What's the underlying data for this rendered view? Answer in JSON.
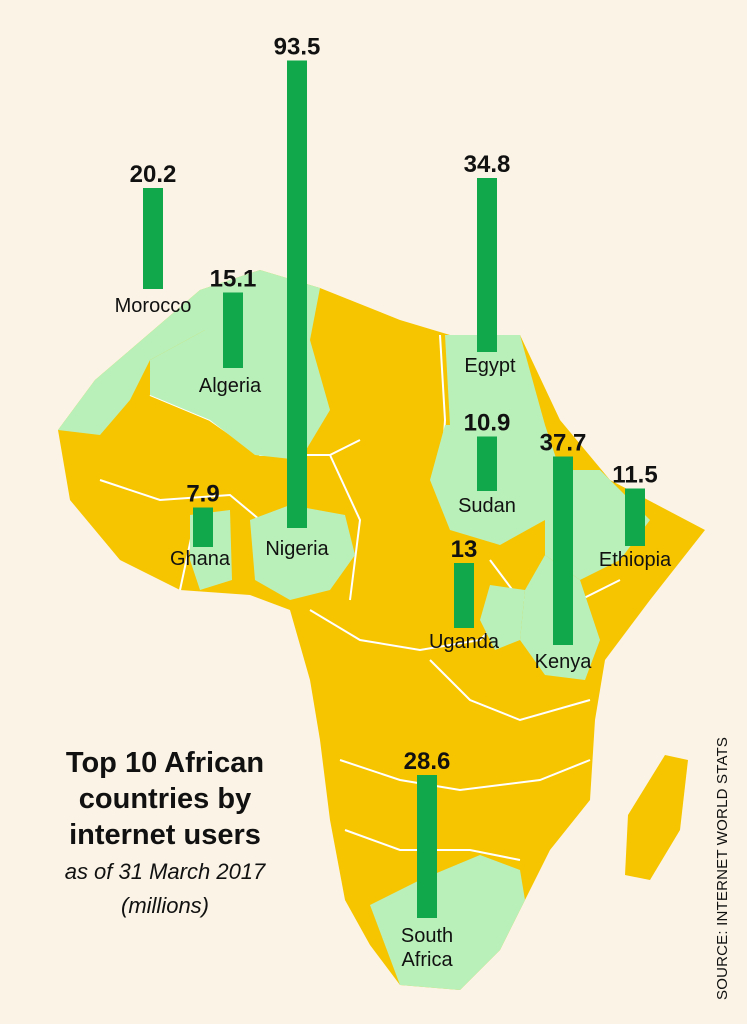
{
  "title": "Top 10 African countries by internet users",
  "subtitle": "as of 31 March 2017",
  "unit": "(millions)",
  "source": "SOURCE: INTERNET WORLD STATS",
  "colors": {
    "background": "#fbf4e6",
    "land_other": "#f7c400",
    "land_highlight": "#b9f0b9",
    "bar": "#10a84a",
    "text": "#111111"
  },
  "chart_data": {
    "type": "bar",
    "title": "Top 10 African countries by internet users",
    "subtitle": "as of 31 March 2017",
    "unit": "millions",
    "categories": [
      "Nigeria",
      "Kenya",
      "Egypt",
      "South Africa",
      "Morocco",
      "Algeria",
      "Uganda",
      "Ethiopia",
      "Sudan",
      "Ghana"
    ],
    "values": [
      93.5,
      37.7,
      34.8,
      28.6,
      20.2,
      15.1,
      13,
      11.5,
      10.9,
      7.9
    ],
    "value_labels": [
      "93.5",
      "37.7",
      "34.8",
      "28.6",
      "20.2",
      "15.1",
      "13",
      "11.5",
      "10.9",
      "7.9"
    ]
  }
}
